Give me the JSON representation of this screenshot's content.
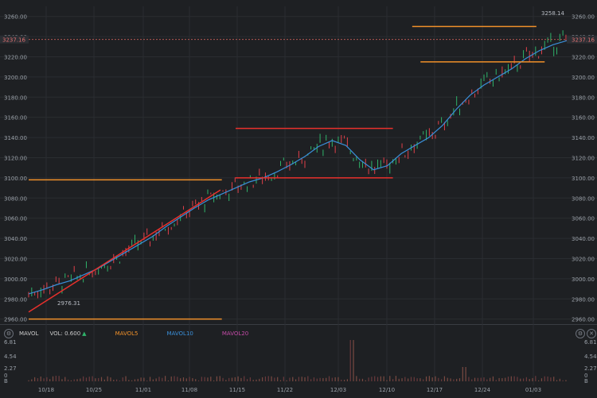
{
  "chart_data": {
    "type": "candlestick",
    "price_axis": {
      "ticks": [
        "3260.00",
        "3240.00",
        "3220.00",
        "3200.00",
        "3180.00",
        "3160.00",
        "3140.00",
        "3120.00",
        "3100.00",
        "3080.00",
        "3060.00",
        "3040.00",
        "3020.00",
        "3000.00",
        "2980.00",
        "2960.00"
      ],
      "ylim": [
        2955,
        3270
      ]
    },
    "current_price_label": "3237.16",
    "high_label": "3258.14",
    "low_label": "2976.31",
    "x_ticks": [
      "10/18",
      "10/25",
      "11/01",
      "11/08",
      "11/15",
      "11/22",
      "12/03",
      "12/10",
      "12/17",
      "12/24",
      "01/03"
    ],
    "ma_line": [
      [
        0,
        2985
      ],
      [
        10,
        2989
      ],
      [
        20,
        2994
      ],
      [
        30,
        2998
      ],
      [
        40,
        3004
      ],
      [
        50,
        3010
      ],
      [
        60,
        3018
      ],
      [
        70,
        3026
      ],
      [
        80,
        3034
      ],
      [
        90,
        3042
      ],
      [
        100,
        3052
      ],
      [
        110,
        3061
      ],
      [
        120,
        3070
      ],
      [
        130,
        3078
      ],
      [
        140,
        3084
      ],
      [
        150,
        3090
      ],
      [
        160,
        3096
      ],
      [
        170,
        3100
      ],
      [
        180,
        3106
      ],
      [
        190,
        3113
      ],
      [
        200,
        3121
      ],
      [
        210,
        3131
      ],
      [
        220,
        3137
      ],
      [
        230,
        3132
      ],
      [
        240,
        3118
      ],
      [
        250,
        3108
      ],
      [
        260,
        3112
      ],
      [
        270,
        3124
      ],
      [
        280,
        3132
      ],
      [
        290,
        3140
      ],
      [
        300,
        3152
      ],
      [
        310,
        3168
      ],
      [
        320,
        3182
      ],
      [
        330,
        3192
      ],
      [
        340,
        3200
      ],
      [
        350,
        3208
      ],
      [
        360,
        3218
      ],
      [
        370,
        3226
      ],
      [
        380,
        3232
      ],
      [
        390,
        3236
      ]
    ],
    "annotations": {
      "orange_lines": [
        {
          "from": [
            0,
            3098
          ],
          "to": [
            140,
            3098
          ]
        },
        {
          "from": [
            0,
            2960
          ],
          "to": [
            140,
            2960
          ]
        },
        {
          "from": [
            278,
            3250
          ],
          "to": [
            368,
            3250
          ]
        },
        {
          "from": [
            284,
            3215
          ],
          "to": [
            374,
            3215
          ]
        }
      ],
      "red_lines": [
        {
          "from": [
            0,
            2967
          ],
          "to": [
            139,
            3088
          ]
        },
        {
          "from": [
            150,
            3149
          ],
          "to": [
            264,
            3149
          ]
        },
        {
          "from": [
            150,
            3100
          ],
          "to": [
            264,
            3100
          ]
        }
      ]
    },
    "volume_panel": {
      "indicator_label": "MAVOL",
      "vol_label": "VOL: 0.600",
      "legend": [
        "MAVOL5",
        "MAVOL10",
        "MAVOL20"
      ],
      "ticks": [
        "6.81",
        "4.54",
        "2.27",
        "0",
        "B"
      ]
    },
    "colors": {
      "up": "#2fb36a",
      "down": "#e0404a",
      "ma": "#3a8fd9",
      "orange": "#f0902a",
      "red": "#e8302c",
      "grid": "#2a2d31"
    }
  }
}
